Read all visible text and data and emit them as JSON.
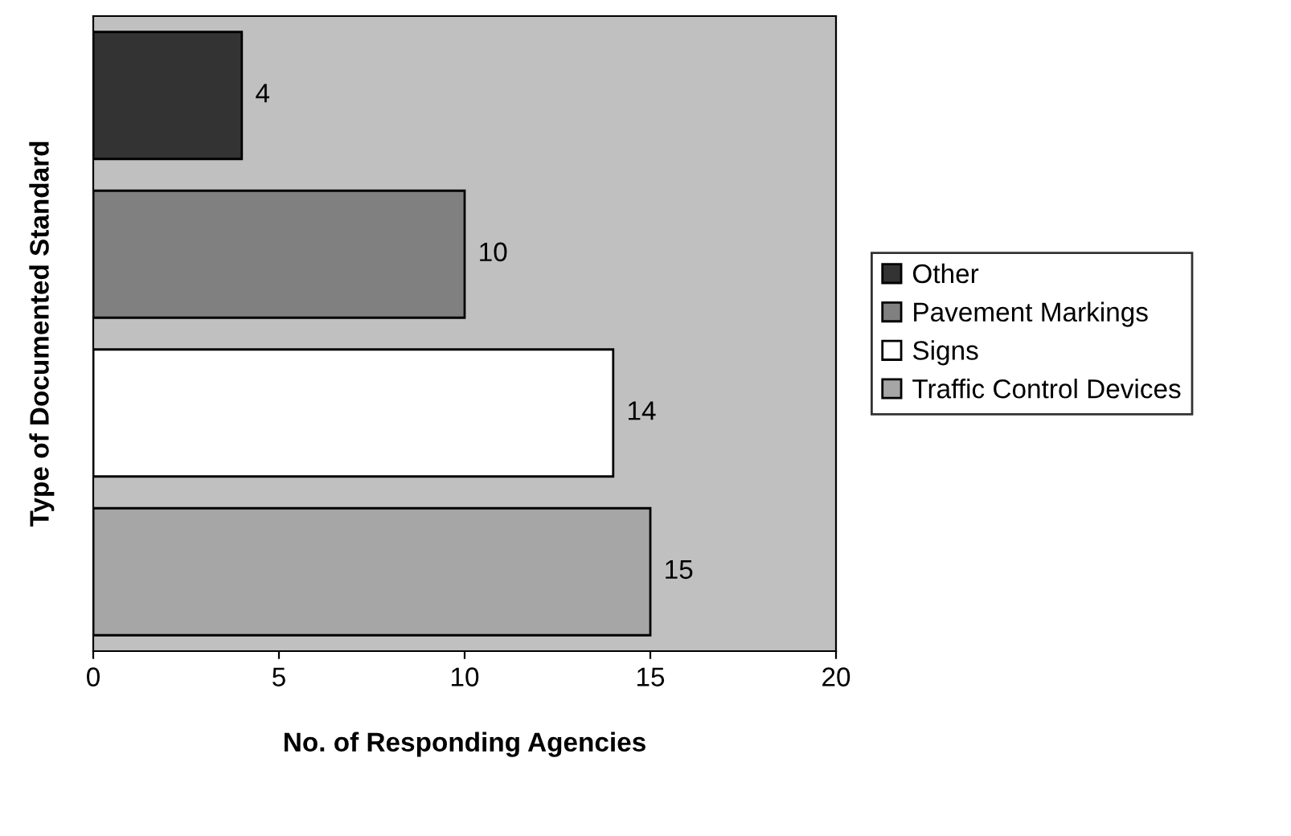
{
  "chart_data": {
    "type": "bar",
    "orientation": "horizontal",
    "stacked": true,
    "xlabel": "No. of Responding Agencies",
    "ylabel": "Type of Documented Standard",
    "categories": [
      null,
      null,
      null,
      null
    ],
    "series": [
      {
        "name": "Other",
        "color": "#333333",
        "values": [
          4,
          null,
          null,
          null
        ]
      },
      {
        "name": "Pavement Markings",
        "color": "#808080",
        "values": [
          null,
          10,
          null,
          null
        ]
      },
      {
        "name": "Signs",
        "color": "#ffffff",
        "values": [
          null,
          null,
          14,
          null
        ]
      },
      {
        "name": "Traffic Control Devices",
        "color": "#a6a6a6",
        "values": [
          null,
          null,
          null,
          15
        ]
      }
    ],
    "xlim": [
      0,
      20
    ],
    "xticks": [
      0,
      5,
      10,
      15,
      20
    ],
    "data_labels": true,
    "legend": "right",
    "grid": false
  }
}
